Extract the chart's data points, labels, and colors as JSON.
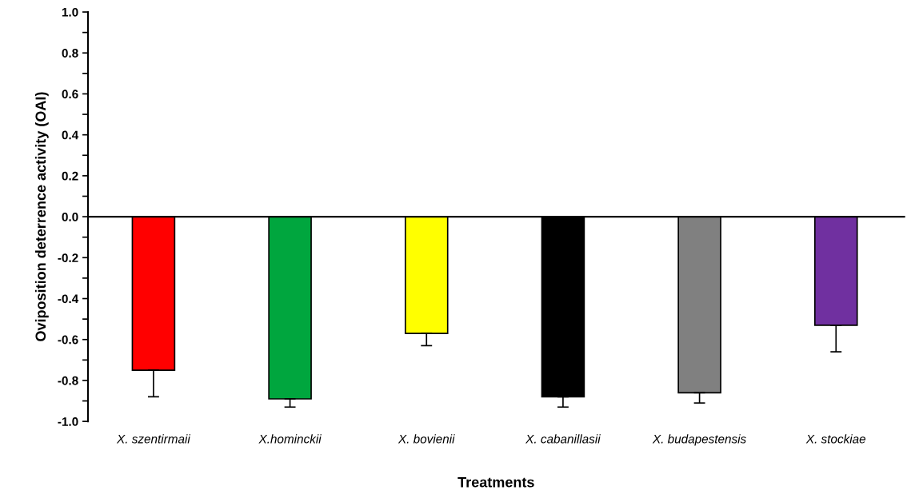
{
  "chart_data": {
    "type": "bar",
    "xlabel": "Treatments",
    "ylabel": "Oviposition deterrence activity (OAI)",
    "categories": [
      "X. szentirmaii",
      "X.hominckii",
      "X. bovienii",
      "X. cabanillasii",
      "X. budapestensis",
      "X. stockiae"
    ],
    "values": [
      -0.75,
      -0.89,
      -0.57,
      -0.88,
      -0.86,
      -0.53
    ],
    "errors": [
      [
        -0.88,
        -0.75
      ],
      [
        -0.93,
        -0.89
      ],
      [
        -0.63,
        -0.57
      ],
      [
        -0.93,
        -0.88
      ],
      [
        -0.91,
        -0.86
      ],
      [
        -0.66,
        -0.53
      ]
    ],
    "colors": [
      "#ff0000",
      "#00a63e",
      "#ffff00",
      "#000000",
      "#808080",
      "#7030a0"
    ],
    "ylim": [
      -1.0,
      1.0
    ],
    "yticks": [
      {
        "value": -1.0,
        "label": "-1.0"
      },
      {
        "value": -0.9,
        "label": null
      },
      {
        "value": -0.8,
        "label": "-0.8"
      },
      {
        "value": -0.7,
        "label": null
      },
      {
        "value": -0.6,
        "label": "-0.6"
      },
      {
        "value": -0.5,
        "label": null
      },
      {
        "value": -0.4,
        "label": "-0.4"
      },
      {
        "value": -0.3,
        "label": null
      },
      {
        "value": -0.2,
        "label": "-0.2"
      },
      {
        "value": -0.1,
        "label": null
      },
      {
        "value": 0.0,
        "label": "0.0"
      },
      {
        "value": 0.1,
        "label": null
      },
      {
        "value": 0.2,
        "label": "0.2"
      },
      {
        "value": 0.3,
        "label": null
      },
      {
        "value": 0.4,
        "label": "0.4"
      },
      {
        "value": 0.5,
        "label": null
      },
      {
        "value": 0.6,
        "label": "0.6"
      },
      {
        "value": 0.7,
        "label": null
      },
      {
        "value": 0.8,
        "label": "0.8"
      },
      {
        "value": 0.9,
        "label": null
      },
      {
        "value": 1.0,
        "label": "1.0"
      }
    ]
  }
}
